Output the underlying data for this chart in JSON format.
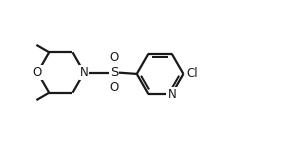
{
  "background_color": "#ffffff",
  "line_color": "#1a1a1a",
  "line_width": 1.6,
  "font_size": 8.5,
  "fig_width": 2.98,
  "fig_height": 1.45,
  "dpi": 100,
  "xlim": [
    0,
    10
  ],
  "ylim": [
    0,
    5
  ]
}
